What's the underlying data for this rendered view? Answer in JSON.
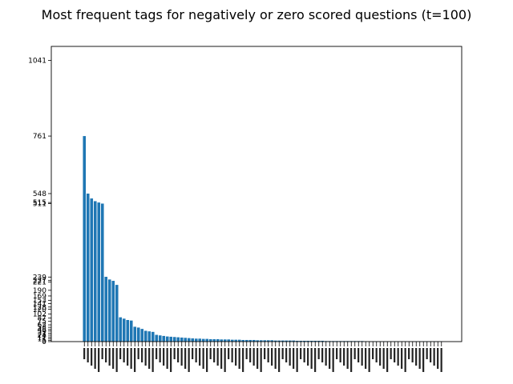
{
  "chart_data": {
    "type": "bar",
    "title": "Most frequent tags for negatively or zero scored questions (t=100)",
    "xlabel": "",
    "ylabel": "",
    "ylim": [
      0,
      1093
    ],
    "ytick_labels": [
      "1041",
      "761",
      "548",
      "515",
      "511",
      "239",
      "227",
      "221",
      "190",
      "169",
      "153",
      "141",
      "128",
      "120",
      "102",
      "87",
      "75",
      "62",
      "53",
      "45",
      "39",
      "31",
      "24",
      "17",
      "11",
      "5",
      "0"
    ],
    "ytick_values": [
      1041,
      761,
      548,
      515,
      511,
      239,
      227,
      221,
      190,
      169,
      153,
      141,
      128,
      120,
      102,
      87,
      75,
      62,
      53,
      45,
      39,
      31,
      24,
      17,
      11,
      5,
      0
    ],
    "values": [
      761,
      548,
      530,
      520,
      515,
      511,
      240,
      230,
      225,
      210,
      90,
      85,
      80,
      78,
      55,
      52,
      47,
      40,
      38,
      36,
      25,
      23,
      21,
      19,
      18,
      17,
      16,
      15,
      14,
      13,
      12,
      11,
      11,
      10,
      10,
      9,
      9,
      9,
      8,
      8,
      8,
      7,
      7,
      7,
      6,
      6,
      6,
      6,
      5,
      5,
      5,
      5,
      5,
      4,
      4,
      4,
      4,
      4,
      4,
      3,
      3,
      3,
      3,
      3,
      3,
      3,
      3,
      2,
      2,
      2,
      2,
      2,
      2,
      2,
      2,
      2,
      2,
      2,
      1,
      1,
      1,
      1,
      1,
      1,
      1,
      1,
      1,
      1,
      1,
      1,
      1,
      1,
      1,
      1,
      1,
      1,
      1,
      1,
      1,
      1
    ],
    "grid": false,
    "legend": "none"
  }
}
